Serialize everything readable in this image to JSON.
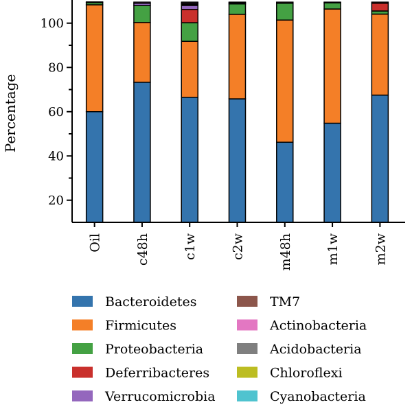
{
  "chart_data": {
    "type": "bar",
    "stacked": true,
    "title": "",
    "xlabel": "",
    "ylabel": "Percentage",
    "ylim": [
      10,
      110
    ],
    "yticks": [
      20,
      40,
      60,
      80,
      100
    ],
    "grid": false,
    "legend_position": "bottom",
    "categories": [
      "Oil",
      "c48h",
      "c1w",
      "c2w",
      "m48h",
      "m1w",
      "m2w"
    ],
    "series": [
      {
        "name": "Bacteroidetes",
        "color": "#3474ad",
        "values": [
          60,
          73.3,
          66.5,
          65.8,
          46.2,
          54.8,
          67.5
        ]
      },
      {
        "name": "Firmicutes",
        "color": "#f47f27",
        "values": [
          48.3,
          27.0,
          25.3,
          38.2,
          55.2,
          51.6,
          36.6
        ]
      },
      {
        "name": "Proteobacteria",
        "color": "#44a143",
        "values": [
          1.0,
          7.7,
          8.4,
          4.7,
          7.6,
          2.8,
          1.4
        ]
      },
      {
        "name": "Deferribacteres",
        "color": "#c9302c",
        "values": [
          0,
          0,
          6.0,
          0,
          0,
          0,
          3.5
        ]
      },
      {
        "name": "Verrucomicrobia",
        "color": "#9467bd",
        "values": [
          0,
          1.0,
          1.8,
          0.5,
          0,
          0,
          0
        ]
      },
      {
        "name": "TM7",
        "color": "#8c564b",
        "values": [
          0,
          0,
          0.5,
          0.3,
          0.5,
          0.3,
          0.5
        ]
      },
      {
        "name": "Actinobacteria",
        "color": "#e377c2",
        "values": [
          0,
          0.5,
          0.5,
          0,
          0,
          0,
          0
        ]
      },
      {
        "name": "Acidobacteria",
        "color": "#7f7f7f",
        "values": [
          0,
          0,
          0.5,
          0,
          0,
          0,
          0
        ]
      },
      {
        "name": "Chloroflexi",
        "color": "#bcbd22",
        "values": [
          0.3,
          0,
          0,
          0,
          0,
          0,
          0
        ]
      },
      {
        "name": "Cyanobacteria",
        "color": "#4fc3cf",
        "values": [
          0,
          0,
          0,
          0,
          0,
          0,
          0
        ]
      }
    ]
  }
}
